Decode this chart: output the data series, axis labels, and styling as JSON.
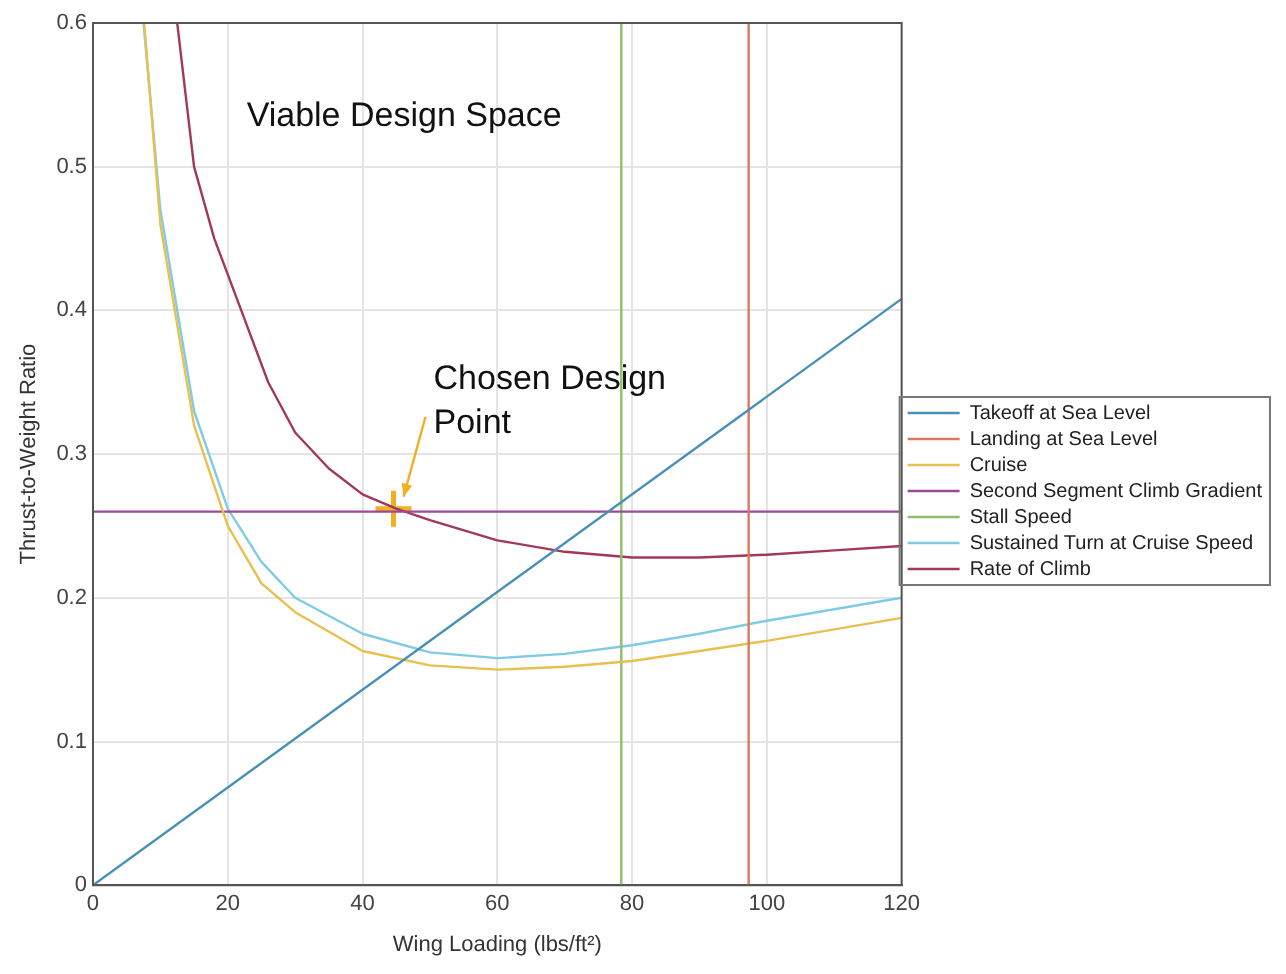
{
  "chart_data": {
    "type": "line",
    "xlabel": "Wing Loading (lbs/ft²)",
    "ylabel": "Thrust-to-Weight Ratio",
    "xlim": [
      0,
      120
    ],
    "ylim": [
      0,
      0.6
    ],
    "xticks": [
      0,
      20,
      40,
      60,
      80,
      100,
      120
    ],
    "yticks": [
      0,
      0.1,
      0.2,
      0.3,
      0.4,
      0.5,
      0.6
    ],
    "grid": true,
    "legend": "right",
    "marker": "none",
    "line_style": "solid",
    "series": [
      {
        "name": "Takeoff at Sea Level",
        "color": "#4a8fb8",
        "x": [
          0,
          120
        ],
        "values": [
          0,
          0.408
        ]
      },
      {
        "name": "Landing at Sea Level",
        "color": "#d97a5c",
        "x": [
          97.3,
          97.3
        ],
        "values": [
          0,
          0.6
        ]
      },
      {
        "name": "Cruise",
        "color": "#e8c050",
        "x": [
          7.6,
          10,
          15,
          20,
          25,
          30,
          40,
          50,
          60,
          70,
          80,
          90,
          100,
          110,
          120
        ],
        "values": [
          0.6,
          0.46,
          0.32,
          0.25,
          0.21,
          0.19,
          0.163,
          0.153,
          0.15,
          0.152,
          0.156,
          0.163,
          0.17,
          0.178,
          0.186
        ]
      },
      {
        "name": "Second Segment Climb Gradient",
        "color": "#9a4a9a",
        "x": [
          0,
          120
        ],
        "values": [
          0.26,
          0.26
        ]
      },
      {
        "name": "Stall Speed",
        "color": "#8fbf6a",
        "x": [
          78.4,
          78.4
        ],
        "values": [
          0,
          0.6
        ]
      },
      {
        "name": "Sustained Turn at Cruise Speed",
        "color": "#7fcbe5",
        "x": [
          7.5,
          10,
          15,
          20,
          25,
          30,
          40,
          50,
          60,
          70,
          80,
          90,
          100,
          110,
          120
        ],
        "values": [
          0.6,
          0.47,
          0.33,
          0.262,
          0.225,
          0.2,
          0.175,
          0.162,
          0.158,
          0.161,
          0.167,
          0.175,
          0.184,
          0.192,
          0.2
        ]
      },
      {
        "name": "Rate of Climb",
        "color": "#a2385a",
        "x": [
          12.5,
          15,
          18,
          22,
          26,
          30,
          35,
          40,
          45,
          50,
          60,
          70,
          80,
          90,
          100,
          110,
          120
        ],
        "values": [
          0.6,
          0.5,
          0.45,
          0.4,
          0.35,
          0.315,
          0.29,
          0.272,
          0.262,
          0.254,
          0.24,
          0.232,
          0.228,
          0.228,
          0.23,
          0.233,
          0.236
        ]
      },
      {
        "type": "scatter",
        "marker": "cross",
        "color": "#f0b020",
        "x": [
          44.6
        ],
        "values": [
          0.262
        ]
      }
    ],
    "annotations": [
      "Viable Design Space",
      {
        "text": "Chosen Design Point",
        "x": 44.6,
        "y": 0.262
      }
    ]
  }
}
